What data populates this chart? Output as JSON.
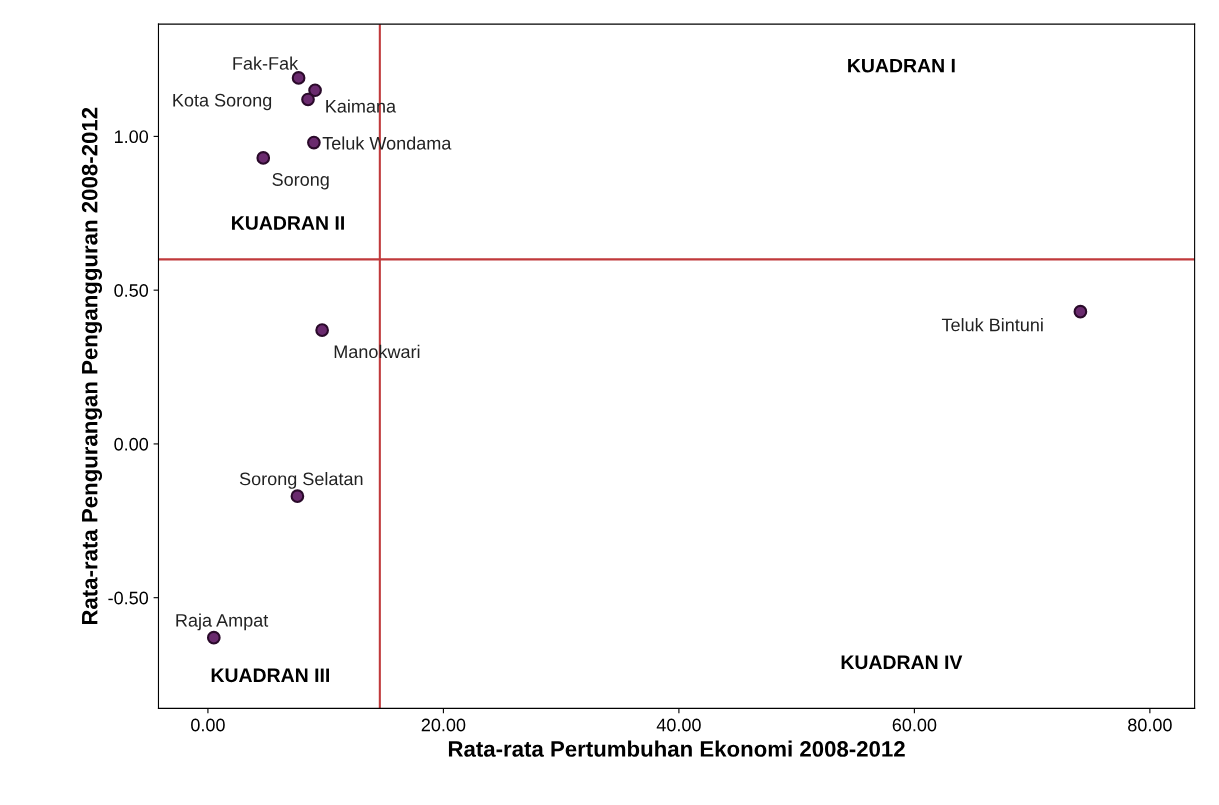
{
  "chart_data": {
    "type": "scatter",
    "xlabel": "Rata-rata Pertumbuhan Ekonomi 2008-2012",
    "ylabel": "Rata-rata Pengurangan Pengangguran 2008-2012",
    "x": [
      7.7,
      9.1,
      8.5,
      9.0,
      4.7,
      9.7,
      74.1,
      7.6,
      0.5
    ],
    "series": [
      {
        "color": "#6a2a6e",
        "values": [
          1.19,
          1.15,
          1.12,
          0.98,
          0.93,
          0.37,
          0.43,
          -0.17,
          -0.63
        ]
      }
    ],
    "xlim": [
      -4.2,
      83.8
    ],
    "ylim": [
      -0.86,
      1.365
    ],
    "xticks": [
      {
        "value": 0,
        "label": "0.00"
      },
      {
        "value": 20,
        "label": "20.00"
      },
      {
        "value": 40,
        "label": "40.00"
      },
      {
        "value": 60,
        "label": "60.00"
      },
      {
        "value": 80,
        "label": "80.00"
      }
    ],
    "yticks": [
      {
        "value": -0.5,
        "label": "-0.50"
      },
      {
        "value": 0,
        "label": "0.00"
      },
      {
        "value": 0.5,
        "label": "0.50"
      },
      {
        "value": 1,
        "label": "1.00"
      }
    ],
    "ref_lines": [
      {
        "axis": "x",
        "value": 14.6,
        "color": "#c0393b"
      },
      {
        "axis": "y",
        "value": 0.6,
        "color": "#c0393b"
      }
    ],
    "grid": false,
    "marker": "circle",
    "annotations": [
      {
        "text": "Fak-Fak",
        "x": 7.7,
        "y": 1.19
      },
      {
        "text": "Kaimana",
        "x": 9.1,
        "y": 1.15
      },
      {
        "text": "Kota Sorong",
        "x": 8.5,
        "y": 1.12
      },
      {
        "text": "Teluk Wondama",
        "x": 9.0,
        "y": 0.98
      },
      {
        "text": "Sorong",
        "x": 4.7,
        "y": 0.93
      },
      {
        "text": "Manokwari",
        "x": 9.7,
        "y": 0.37
      },
      {
        "text": "Teluk Bintuni",
        "x": 74.1,
        "y": 0.43
      },
      {
        "text": "Sorong Selatan",
        "x": 7.6,
        "y": -0.17
      },
      {
        "text": "Raja Ampat",
        "x": 0.5,
        "y": -0.63
      },
      "KUADRAN I",
      "KUADRAN II",
      "KUADRAN III",
      "KUADRAN IV"
    ]
  }
}
